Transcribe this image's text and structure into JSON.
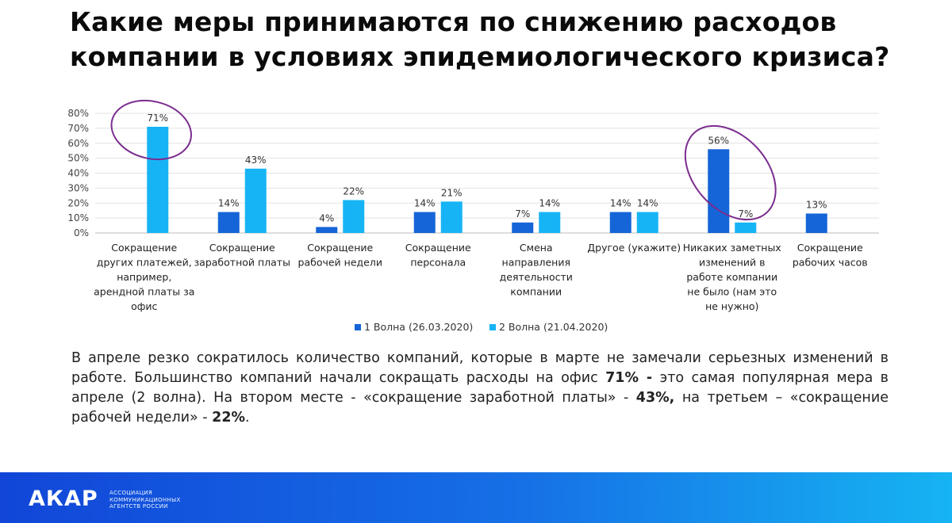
{
  "title": {
    "line1": "Какие меры принимаются по снижению расходов",
    "line2": "компании в условиях эпидемиологического кризиса?"
  },
  "chart_data": {
    "type": "bar",
    "categories": [
      [
        "Сокращение",
        "других платежей,",
        "например,",
        "арендной платы за",
        "офис"
      ],
      [
        "Сокращение",
        "заработной платы"
      ],
      [
        "Сокращение",
        "рабочей недели"
      ],
      [
        "Сокращение",
        "персонала"
      ],
      [
        "Смена",
        "направления",
        "деятельности",
        "компании"
      ],
      [
        "Другое (укажите)"
      ],
      [
        "Никаких заметных",
        "изменений в",
        "работе компании",
        "не было (нам это",
        "не нужно)"
      ],
      [
        "Сокращение",
        "рабочих часов"
      ]
    ],
    "series": [
      {
        "name": "1 Волна (26.03.2020)",
        "color": "#1565d8",
        "values": [
          null,
          14,
          4,
          14,
          7,
          14,
          56,
          13
        ]
      },
      {
        "name": "2 Волна (21.04.2020)",
        "color": "#17b4f5",
        "values": [
          71,
          43,
          22,
          21,
          14,
          14,
          7,
          null
        ]
      }
    ],
    "ylim": [
      0,
      80
    ],
    "yticks": [
      "0%",
      "10%",
      "20%",
      "30%",
      "40%",
      "50%",
      "60%",
      "70%",
      "80%"
    ],
    "value_suffix": "%",
    "grid": true,
    "legend_position": "bottom",
    "highlight_color": "#7b2d8f"
  },
  "paragraph": {
    "p1": "В апреле резко сократилось количество компаний, которые в марте не замечали серьезных  изменений в работе. Большинство компаний начали сокращать расходы на офис ",
    "b1": "71% -",
    "p2": " это самая популярная мера в апреле (2 волна). На втором месте - «сокращение заработной платы» - ",
    "b2": "43%,",
    "p3": " на третьем – «сокращение рабочей недели» - ",
    "b3": "22%",
    "p4": "."
  },
  "footer": {
    "logo": "АКАР",
    "org_line1": "АССОЦИАЦИЯ",
    "org_line2": "КОММУНИКАЦИОННЫХ",
    "org_line3": "АГЕНТСТВ РОССИИ"
  }
}
